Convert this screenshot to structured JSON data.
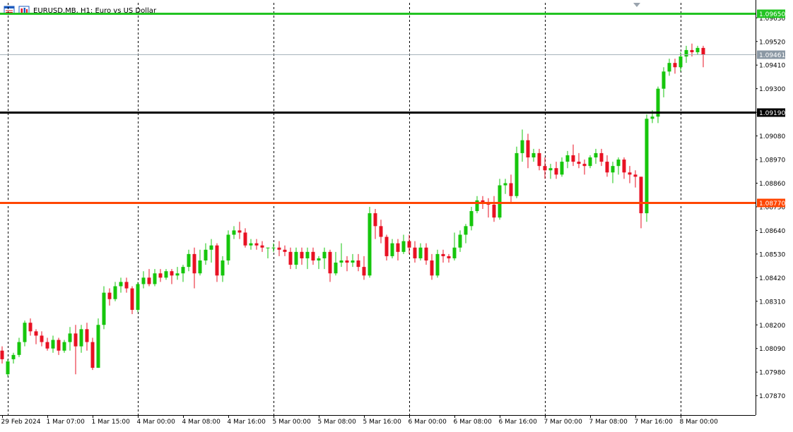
{
  "header": {
    "symbol": "EURUSD.MB",
    "timeframe": "H1",
    "description": "Euro vs US Dollar",
    "icons": [
      "window-menu-icon",
      "chart-type-icon"
    ]
  },
  "colors": {
    "bull": "#16c60c",
    "bear": "#e81123",
    "doji": "#16c60c",
    "grid_line": "#000000",
    "axis_line": "#000000",
    "current_price_line": "#a6b2bb",
    "current_price_tag": "#8b98a4"
  },
  "chart_data": {
    "type": "candlestick",
    "title": "EURUSD.MB, H1: Euro vs US Dollar",
    "ylim": [
      1.0778,
      1.097
    ],
    "y_ticks": [
      "1.09630",
      "1.09520",
      "1.09410",
      "1.09300",
      "1.09190",
      "1.09080",
      "1.08970",
      "1.08860",
      "1.08750",
      "1.08640",
      "1.08530",
      "1.08420",
      "1.08310",
      "1.08200",
      "1.08090",
      "1.07980",
      "1.07870"
    ],
    "x_ticks": [
      {
        "bar": 0,
        "label": "29 Feb 2024"
      },
      {
        "bar": 8,
        "label": "1 Mar 07:00"
      },
      {
        "bar": 16,
        "label": "1 Mar 15:00"
      },
      {
        "bar": 24,
        "label": "4 Mar 00:00"
      },
      {
        "bar": 32,
        "label": "4 Mar 08:00"
      },
      {
        "bar": 40,
        "label": "4 Mar 16:00"
      },
      {
        "bar": 48,
        "label": "5 Mar 00:00"
      },
      {
        "bar": 56,
        "label": "5 Mar 08:00"
      },
      {
        "bar": 64,
        "label": "5 Mar 16:00"
      },
      {
        "bar": 72,
        "label": "6 Mar 00:00"
      },
      {
        "bar": 80,
        "label": "6 Mar 08:00"
      },
      {
        "bar": 88,
        "label": "6 Mar 16:00"
      },
      {
        "bar": 96,
        "label": "7 Mar 00:00"
      },
      {
        "bar": 104,
        "label": "7 Mar 08:00"
      },
      {
        "bar": 112,
        "label": "7 Mar 16:00"
      },
      {
        "bar": 120,
        "label": "8 Mar 00:00"
      }
    ],
    "period_separator_bars": [
      1,
      24,
      48,
      72,
      96,
      120
    ],
    "horizontal_lines": [
      {
        "price": 1.0965,
        "label": "1.09650",
        "color": "#22c322"
      },
      {
        "price": 1.0919,
        "label": "1.09190",
        "color": "#000000"
      },
      {
        "price": 1.0877,
        "label": "1.08770",
        "color": "#ff4500"
      }
    ],
    "current_price": {
      "price": 1.09461,
      "label": "1.09461"
    },
    "candles": [
      [
        1.0808,
        1.081,
        1.0802,
        1.0804
      ],
      [
        1.0797,
        1.0804,
        1.0796,
        1.0803
      ],
      [
        1.0804,
        1.0807,
        1.0802,
        1.0806
      ],
      [
        1.0806,
        1.0814,
        1.0805,
        1.0812
      ],
      [
        1.0812,
        1.0822,
        1.081,
        1.0821
      ],
      [
        1.0821,
        1.0823,
        1.0815,
        1.0817
      ],
      [
        1.0817,
        1.0818,
        1.0811,
        1.0815
      ],
      [
        1.0815,
        1.0817,
        1.081,
        1.0812
      ],
      [
        1.0812,
        1.0814,
        1.0808,
        1.0809
      ],
      [
        1.0809,
        1.0815,
        1.0807,
        1.0813
      ],
      [
        1.0813,
        1.0814,
        1.0806,
        1.0808
      ],
      [
        1.0808,
        1.0813,
        1.0807,
        1.0812
      ],
      [
        1.0812,
        1.0819,
        1.0808,
        1.0816
      ],
      [
        1.0816,
        1.082,
        1.0797,
        1.081
      ],
      [
        1.081,
        1.082,
        1.0807,
        1.0818
      ],
      [
        1.0818,
        1.0821,
        1.0808,
        1.0812
      ],
      [
        1.0812,
        1.0814,
        1.0799,
        1.08
      ],
      [
        1.08,
        1.0823,
        1.08,
        1.082
      ],
      [
        1.082,
        1.0838,
        1.0818,
        1.0835
      ],
      [
        1.0835,
        1.0837,
        1.0829,
        1.0832
      ],
      [
        1.0832,
        1.084,
        1.0831,
        1.0838
      ],
      [
        1.0838,
        1.0842,
        1.0835,
        1.084
      ],
      [
        1.084,
        1.0842,
        1.0835,
        1.0837
      ],
      [
        1.0837,
        1.0838,
        1.0825,
        1.0827
      ],
      [
        1.0827,
        1.084,
        1.0826,
        1.0839
      ],
      [
        1.0839,
        1.0845,
        1.0837,
        1.0842
      ],
      [
        1.0842,
        1.0846,
        1.0838,
        1.0839
      ],
      [
        1.0839,
        1.0846,
        1.0838,
        1.0844
      ],
      [
        1.0844,
        1.0846,
        1.084,
        1.0842
      ],
      [
        1.0842,
        1.0846,
        1.0841,
        1.0845
      ],
      [
        1.0845,
        1.0846,
        1.0839,
        1.0843
      ],
      [
        1.0843,
        1.0847,
        1.0841,
        1.0844
      ],
      [
        1.0844,
        1.0848,
        1.084,
        1.0847
      ],
      [
        1.0847,
        1.0855,
        1.0845,
        1.0853
      ],
      [
        1.0853,
        1.0856,
        1.0837,
        1.0844
      ],
      [
        1.0844,
        1.0855,
        1.0843,
        1.085
      ],
      [
        1.085,
        1.0858,
        1.0848,
        1.0855
      ],
      [
        1.0855,
        1.086,
        1.0849,
        1.0857
      ],
      [
        1.0857,
        1.0858,
        1.084,
        1.0843
      ],
      [
        1.0843,
        1.0852,
        1.084,
        1.085
      ],
      [
        1.085,
        1.0864,
        1.0848,
        1.0862
      ],
      [
        1.0862,
        1.0866,
        1.086,
        1.0864
      ],
      [
        1.0864,
        1.0868,
        1.086,
        1.0863
      ],
      [
        1.0863,
        1.0865,
        1.0856,
        1.0857
      ],
      [
        1.0857,
        1.086,
        1.0855,
        1.0858
      ],
      [
        1.0858,
        1.086,
        1.0855,
        1.0857
      ],
      [
        1.0857,
        1.0859,
        1.0854,
        1.0856
      ],
      [
        1.0856,
        1.0856,
        1.0851,
        1.0856
      ],
      [
        1.0856,
        1.0858,
        1.0854,
        1.0856
      ],
      [
        1.0856,
        1.0859,
        1.0852,
        1.0855
      ],
      [
        1.0855,
        1.0857,
        1.0852,
        1.0854
      ],
      [
        1.0854,
        1.0856,
        1.0846,
        1.0848
      ],
      [
        1.0848,
        1.0856,
        1.0846,
        1.0854
      ],
      [
        1.0854,
        1.0856,
        1.0848,
        1.0851
      ],
      [
        1.0851,
        1.0856,
        1.0846,
        1.0854
      ],
      [
        1.0854,
        1.0856,
        1.0848,
        1.085
      ],
      [
        1.085,
        1.0852,
        1.0846,
        1.0851
      ],
      [
        1.0851,
        1.0856,
        1.0846,
        1.0854
      ],
      [
        1.0854,
        1.0855,
        1.084,
        1.0844
      ],
      [
        1.0844,
        1.0854,
        1.0843,
        1.0849
      ],
      [
        1.0849,
        1.0858,
        1.0847,
        1.085
      ],
      [
        1.085,
        1.0852,
        1.0845,
        1.0849
      ],
      [
        1.0849,
        1.0853,
        1.0847,
        1.085
      ],
      [
        1.085,
        1.0853,
        1.0845,
        1.0847
      ],
      [
        1.0847,
        1.0852,
        1.0841,
        1.0843
      ],
      [
        1.0843,
        1.0875,
        1.0842,
        1.0872
      ],
      [
        1.0872,
        1.0874,
        1.086,
        1.0866
      ],
      [
        1.0866,
        1.0869,
        1.0858,
        1.0861
      ],
      [
        1.0861,
        1.0862,
        1.085,
        1.0852
      ],
      [
        1.0852,
        1.086,
        1.0851,
        1.0858
      ],
      [
        1.0858,
        1.086,
        1.085,
        1.0854
      ],
      [
        1.0854,
        1.0862,
        1.0853,
        1.0859
      ],
      [
        1.0859,
        1.0862,
        1.0853,
        1.0856
      ],
      [
        1.0856,
        1.0859,
        1.0849,
        1.0851
      ],
      [
        1.0851,
        1.0858,
        1.085,
        1.0856
      ],
      [
        1.0856,
        1.0858,
        1.0848,
        1.085
      ],
      [
        1.085,
        1.0853,
        1.0841,
        1.0843
      ],
      [
        1.0843,
        1.0855,
        1.0842,
        1.0853
      ],
      [
        1.0853,
        1.0855,
        1.0849,
        1.0852
      ],
      [
        1.0852,
        1.0853,
        1.0849,
        1.0851
      ],
      [
        1.0851,
        1.0863,
        1.085,
        1.0856
      ],
      [
        1.0856,
        1.0864,
        1.0854,
        1.0862
      ],
      [
        1.0862,
        1.0867,
        1.0858,
        1.0866
      ],
      [
        1.0866,
        1.0875,
        1.0864,
        1.0873
      ],
      [
        1.0873,
        1.088,
        1.0872,
        1.0878
      ],
      [
        1.0878,
        1.088,
        1.0874,
        1.0877
      ],
      [
        1.0877,
        1.0879,
        1.087,
        1.0876
      ],
      [
        1.0876,
        1.088,
        1.0868,
        1.087
      ],
      [
        1.087,
        1.0888,
        1.0869,
        1.0885
      ],
      [
        1.0885,
        1.0888,
        1.0881,
        1.0886
      ],
      [
        1.0886,
        1.089,
        1.0877,
        1.088
      ],
      [
        1.088,
        1.0903,
        1.0879,
        1.09
      ],
      [
        1.09,
        1.0911,
        1.0896,
        1.0906
      ],
      [
        1.0906,
        1.0909,
        1.0893,
        1.0898
      ],
      [
        1.0898,
        1.0902,
        1.0896,
        1.09
      ],
      [
        1.09,
        1.0902,
        1.0892,
        1.0894
      ],
      [
        1.0894,
        1.0898,
        1.0888,
        1.0892
      ],
      [
        1.0892,
        1.0895,
        1.0888,
        1.0893
      ],
      [
        1.0893,
        1.0896,
        1.0888,
        1.089
      ],
      [
        1.089,
        1.0898,
        1.0889,
        1.0896
      ],
      [
        1.0896,
        1.0901,
        1.0893,
        1.0899
      ],
      [
        1.0899,
        1.0904,
        1.0894,
        1.0896
      ],
      [
        1.0896,
        1.09,
        1.0893,
        1.0895
      ],
      [
        1.0895,
        1.0897,
        1.089,
        1.0894
      ],
      [
        1.0894,
        1.0899,
        1.0893,
        1.0898
      ],
      [
        1.0898,
        1.0902,
        1.0895,
        1.09
      ],
      [
        1.09,
        1.0902,
        1.0894,
        1.0896
      ],
      [
        1.0896,
        1.0899,
        1.0889,
        1.0891
      ],
      [
        1.0891,
        1.0896,
        1.0886,
        1.0894
      ],
      [
        1.0894,
        1.0898,
        1.089,
        1.0897
      ],
      [
        1.0897,
        1.0898,
        1.0888,
        1.0891
      ],
      [
        1.0891,
        1.0894,
        1.0886,
        1.089
      ],
      [
        1.089,
        1.0892,
        1.0884,
        1.0889
      ],
      [
        1.0889,
        1.0889,
        1.0865,
        1.0872
      ],
      [
        1.0872,
        1.0918,
        1.0868,
        1.0916
      ],
      [
        1.0916,
        1.092,
        1.0914,
        1.0917
      ],
      [
        1.0917,
        1.0931,
        1.0914,
        1.093
      ],
      [
        1.093,
        1.094,
        1.0926,
        1.0938
      ],
      [
        1.0938,
        1.0944,
        1.0936,
        1.0942
      ],
      [
        1.0942,
        1.0944,
        1.0937,
        1.094
      ],
      [
        1.094,
        1.0947,
        1.0938,
        1.0945
      ],
      [
        1.0945,
        1.095,
        1.0942,
        1.0948
      ],
      [
        1.0948,
        1.0951,
        1.0945,
        1.0947
      ],
      [
        1.0947,
        1.095,
        1.0946,
        1.0949
      ],
      [
        1.0949,
        1.095,
        1.094,
        1.0946
      ]
    ]
  }
}
